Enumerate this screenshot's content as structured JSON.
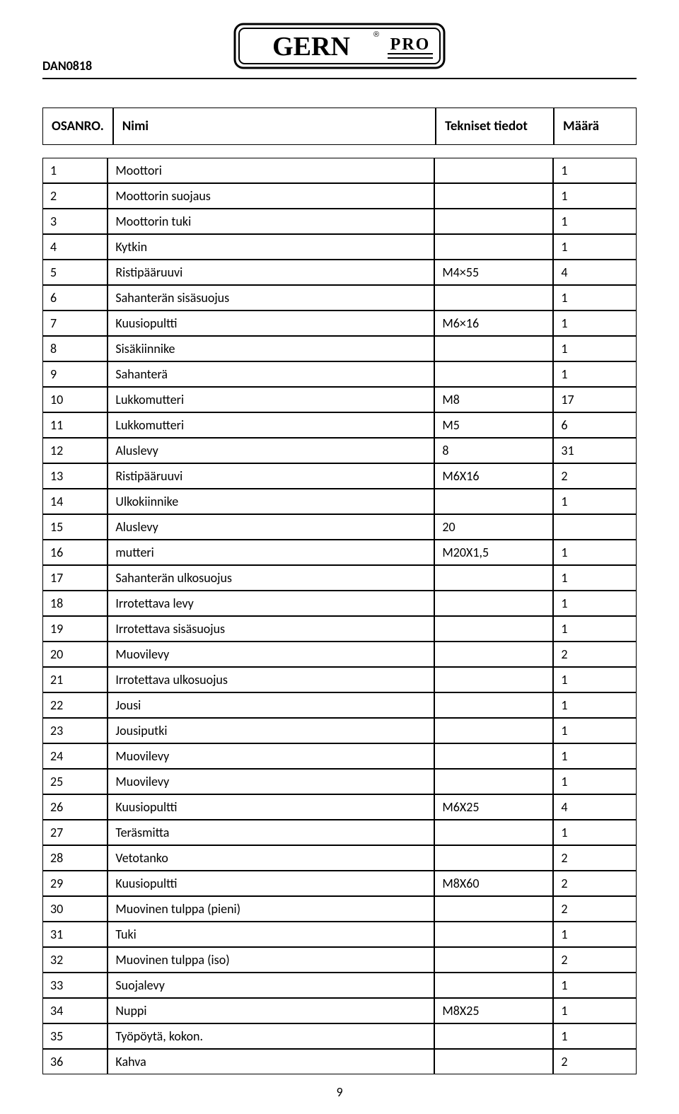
{
  "doc_code": "DAN0818",
  "page_number": "9",
  "brand": {
    "name": "GERN",
    "reg": "®",
    "sub": "PRO"
  },
  "columns": {
    "no": "OSANRO.",
    "name": "Nimi",
    "spec": "Tekniset tiedot",
    "qty": "Määrä"
  },
  "rows": [
    {
      "no": "1",
      "name": "Moottori",
      "spec": "",
      "qty": "1"
    },
    {
      "no": "2",
      "name": "Moottorin suojaus",
      "spec": "",
      "qty": "1"
    },
    {
      "no": "3",
      "name": "Moottorin tuki",
      "spec": "",
      "qty": "1"
    },
    {
      "no": "4",
      "name": "Kytkin",
      "spec": "",
      "qty": "1"
    },
    {
      "no": "5",
      "name": "Ristipääruuvi",
      "spec": "M4×55",
      "qty": "4"
    },
    {
      "no": "6",
      "name": "Sahanterän sisäsuojus",
      "spec": "",
      "qty": "1"
    },
    {
      "no": "7",
      "name": "Kuusiopultti",
      "spec": "M6×16",
      "qty": "1"
    },
    {
      "no": "8",
      "name": "Sisäkiinnike",
      "spec": "",
      "qty": "1"
    },
    {
      "no": "9",
      "name": "Sahanterä",
      "spec": "",
      "qty": "1"
    },
    {
      "no": "10",
      "name": "Lukkomutteri",
      "spec": "M8",
      "qty": "17"
    },
    {
      "no": "11",
      "name": "Lukkomutteri",
      "spec": "M5",
      "qty": "6"
    },
    {
      "no": "12",
      "name": "Aluslevy",
      "spec": "8",
      "qty": "31"
    },
    {
      "no": "13",
      "name": "Ristipääruuvi",
      "spec": "M6X16",
      "qty": "2"
    },
    {
      "no": "14",
      "name": "Ulkokiinnike",
      "spec": "",
      "qty": "1"
    },
    {
      "no": "15",
      "name": "Aluslevy",
      "spec": "20",
      "qty": ""
    },
    {
      "no": "16",
      "name": "mutteri",
      "spec": "M20X1,5",
      "qty": "1"
    },
    {
      "no": "17",
      "name": "Sahanterän ulkosuojus",
      "spec": "",
      "qty": "1"
    },
    {
      "no": "18",
      "name": "Irrotettava levy",
      "spec": "",
      "qty": "1"
    },
    {
      "no": "19",
      "name": "Irrotettava sisäsuojus",
      "spec": "",
      "qty": "1"
    },
    {
      "no": "20",
      "name": "Muovilevy",
      "spec": "",
      "qty": "2"
    },
    {
      "no": "21",
      "name": "Irrotettava ulkosuojus",
      "spec": "",
      "qty": "1"
    },
    {
      "no": "22",
      "name": "Jousi",
      "spec": "",
      "qty": "1"
    },
    {
      "no": "23",
      "name": "Jousiputki",
      "spec": "",
      "qty": "1"
    },
    {
      "no": "24",
      "name": "Muovilevy",
      "spec": "",
      "qty": "1"
    },
    {
      "no": "25",
      "name": "Muovilevy",
      "spec": "",
      "qty": "1"
    },
    {
      "no": "26",
      "name": "Kuusiopultti",
      "spec": "M6X25",
      "qty": "4"
    },
    {
      "no": "27",
      "name": "Teräsmitta",
      "spec": "",
      "qty": "1"
    },
    {
      "no": "28",
      "name": "Vetotanko",
      "spec": "",
      "qty": "2"
    },
    {
      "no": "29",
      "name": "Kuusiopultti",
      "spec": "M8X60",
      "qty": "2"
    },
    {
      "no": "30",
      "name": "Muovinen tulppa (pieni)",
      "spec": "",
      "qty": "2"
    },
    {
      "no": "31",
      "name": "Tuki",
      "spec": "",
      "qty": "1"
    },
    {
      "no": "32",
      "name": "Muovinen tulppa (iso)",
      "spec": "",
      "qty": "2"
    },
    {
      "no": "33",
      "name": "Suojalevy",
      "spec": "",
      "qty": "1"
    },
    {
      "no": "34",
      "name": "Nuppi",
      "spec": "M8X25",
      "qty": "1"
    },
    {
      "no": "35",
      "name": "Työpöytä, kokon.",
      "spec": "",
      "qty": "1"
    },
    {
      "no": "36",
      "name": "Kahva",
      "spec": "",
      "qty": "2"
    }
  ]
}
